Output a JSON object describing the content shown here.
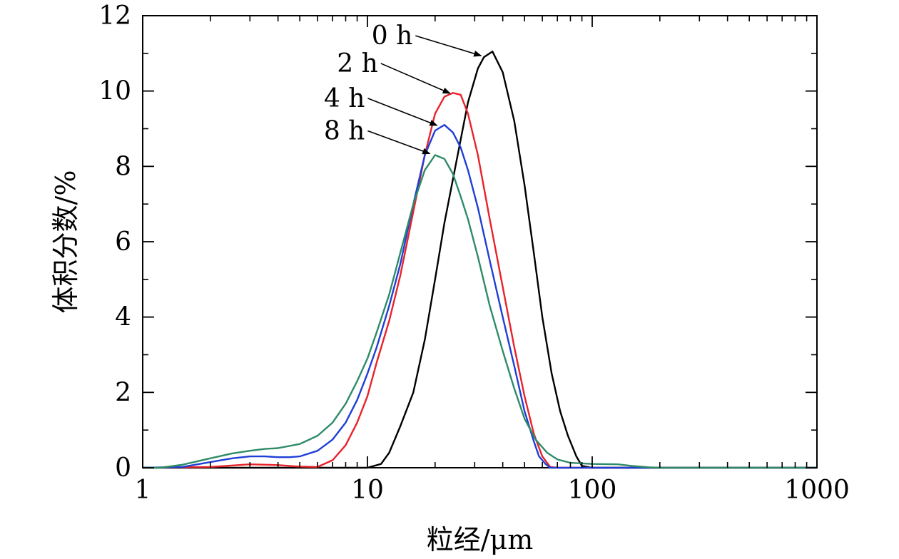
{
  "chart_data": {
    "type": "line",
    "xscale": "log",
    "xlim": [
      1,
      1000
    ],
    "ylim": [
      0,
      12
    ],
    "grid": false,
    "xlabel": "粒经/μm",
    "ylabel": "体积分数/%",
    "xticks": [
      {
        "value": 1,
        "label": "1"
      },
      {
        "value": 10,
        "label": "10"
      },
      {
        "value": 100,
        "label": "100"
      },
      {
        "value": 1000,
        "label": "1000"
      }
    ],
    "yticks": [
      {
        "value": 0,
        "label": "0"
      },
      {
        "value": 2,
        "label": "2"
      },
      {
        "value": 4,
        "label": "4"
      },
      {
        "value": 6,
        "label": "6"
      },
      {
        "value": 8,
        "label": "8"
      },
      {
        "value": 10,
        "label": "10"
      },
      {
        "value": 12,
        "label": "12"
      }
    ],
    "series": [
      {
        "name": "0 h",
        "color": "#000000",
        "points": [
          [
            1,
            0
          ],
          [
            10,
            0
          ],
          [
            11.5,
            0.1
          ],
          [
            12.5,
            0.4
          ],
          [
            14,
            1.1
          ],
          [
            16,
            2
          ],
          [
            18,
            3.4
          ],
          [
            20,
            5
          ],
          [
            22,
            6.5
          ],
          [
            25,
            8.2
          ],
          [
            28,
            9.7
          ],
          [
            31,
            10.6
          ],
          [
            33,
            10.9
          ],
          [
            36,
            11.05
          ],
          [
            40,
            10.5
          ],
          [
            45,
            9.2
          ],
          [
            50,
            7.5
          ],
          [
            55,
            5.7
          ],
          [
            60,
            4
          ],
          [
            66,
            2.5
          ],
          [
            72,
            1.5
          ],
          [
            78,
            0.85
          ],
          [
            85,
            0.3
          ],
          [
            90,
            0.05
          ],
          [
            100,
            0
          ],
          [
            1000,
            0
          ]
        ]
      },
      {
        "name": "2 h",
        "color": "#e8222a",
        "points": [
          [
            1,
            0
          ],
          [
            2,
            0.02
          ],
          [
            3,
            0.09
          ],
          [
            4,
            0.07
          ],
          [
            5,
            0.03
          ],
          [
            6,
            0.02
          ],
          [
            7,
            0.2
          ],
          [
            8,
            0.6
          ],
          [
            9,
            1.2
          ],
          [
            10,
            1.9
          ],
          [
            11,
            2.8
          ],
          [
            12.5,
            3.9
          ],
          [
            14,
            5.1
          ],
          [
            16,
            6.8
          ],
          [
            18,
            8.3
          ],
          [
            20,
            9.4
          ],
          [
            22,
            9.85
          ],
          [
            24,
            9.95
          ],
          [
            26,
            9.9
          ],
          [
            28,
            9.4
          ],
          [
            31,
            8.3
          ],
          [
            35,
            6.6
          ],
          [
            40,
            4.8
          ],
          [
            45,
            3.2
          ],
          [
            50,
            1.9
          ],
          [
            55,
            0.9
          ],
          [
            60,
            0.3
          ],
          [
            65,
            0.02
          ],
          [
            70,
            0
          ],
          [
            1000,
            0
          ]
        ]
      },
      {
        "name": "4 h",
        "color": "#1f3fd6",
        "points": [
          [
            1,
            0
          ],
          [
            1.5,
            0.02
          ],
          [
            2,
            0.15
          ],
          [
            2.5,
            0.25
          ],
          [
            3,
            0.3
          ],
          [
            3.5,
            0.3
          ],
          [
            4,
            0.28
          ],
          [
            4.5,
            0.28
          ],
          [
            5,
            0.3
          ],
          [
            6,
            0.45
          ],
          [
            7,
            0.75
          ],
          [
            8,
            1.2
          ],
          [
            9,
            1.8
          ],
          [
            10,
            2.5
          ],
          [
            11,
            3.2
          ],
          [
            12.5,
            4.3
          ],
          [
            14,
            5.4
          ],
          [
            16,
            7
          ],
          [
            18,
            8.3
          ],
          [
            20,
            8.95
          ],
          [
            22,
            9.1
          ],
          [
            24,
            8.9
          ],
          [
            26,
            8.5
          ],
          [
            28,
            7.9
          ],
          [
            31,
            6.9
          ],
          [
            35,
            5.5
          ],
          [
            40,
            4
          ],
          [
            45,
            2.7
          ],
          [
            50,
            1.5
          ],
          [
            55,
            0.7
          ],
          [
            58,
            0.3
          ],
          [
            62,
            0.1
          ],
          [
            65,
            0
          ],
          [
            1000,
            0
          ]
        ]
      },
      {
        "name": "8 h",
        "color": "#2e8b67",
        "points": [
          [
            1,
            0
          ],
          [
            1.2,
            0
          ],
          [
            1.5,
            0.08
          ],
          [
            2,
            0.25
          ],
          [
            2.5,
            0.38
          ],
          [
            3,
            0.45
          ],
          [
            3.5,
            0.5
          ],
          [
            4,
            0.52
          ],
          [
            5,
            0.63
          ],
          [
            6,
            0.85
          ],
          [
            7,
            1.2
          ],
          [
            8,
            1.7
          ],
          [
            9,
            2.3
          ],
          [
            10,
            2.9
          ],
          [
            11,
            3.6
          ],
          [
            12.5,
            4.6
          ],
          [
            14,
            5.7
          ],
          [
            16,
            7
          ],
          [
            18,
            7.9
          ],
          [
            20,
            8.3
          ],
          [
            22,
            8.2
          ],
          [
            24,
            7.8
          ],
          [
            26,
            7.2
          ],
          [
            28,
            6.6
          ],
          [
            31,
            5.6
          ],
          [
            35,
            4.3
          ],
          [
            40,
            3.1
          ],
          [
            45,
            2.1
          ],
          [
            50,
            1.3
          ],
          [
            56,
            0.75
          ],
          [
            63,
            0.4
          ],
          [
            70,
            0.22
          ],
          [
            80,
            0.13
          ],
          [
            100,
            0.1
          ],
          [
            130,
            0.09
          ],
          [
            150,
            0.05
          ],
          [
            180,
            0.01
          ],
          [
            200,
            0
          ],
          [
            1000,
            0
          ]
        ]
      }
    ],
    "annotations": [
      {
        "label": "0 h",
        "target": [
          33,
          10.9
        ],
        "color": "#000000"
      },
      {
        "label": "2 h",
        "target": [
          24,
          9.9
        ],
        "color": "#000000"
      },
      {
        "label": "4 h",
        "target": [
          21,
          9.05
        ],
        "color": "#000000"
      },
      {
        "label": "8 h",
        "target": [
          19.5,
          8.3
        ],
        "color": "#000000"
      }
    ]
  }
}
